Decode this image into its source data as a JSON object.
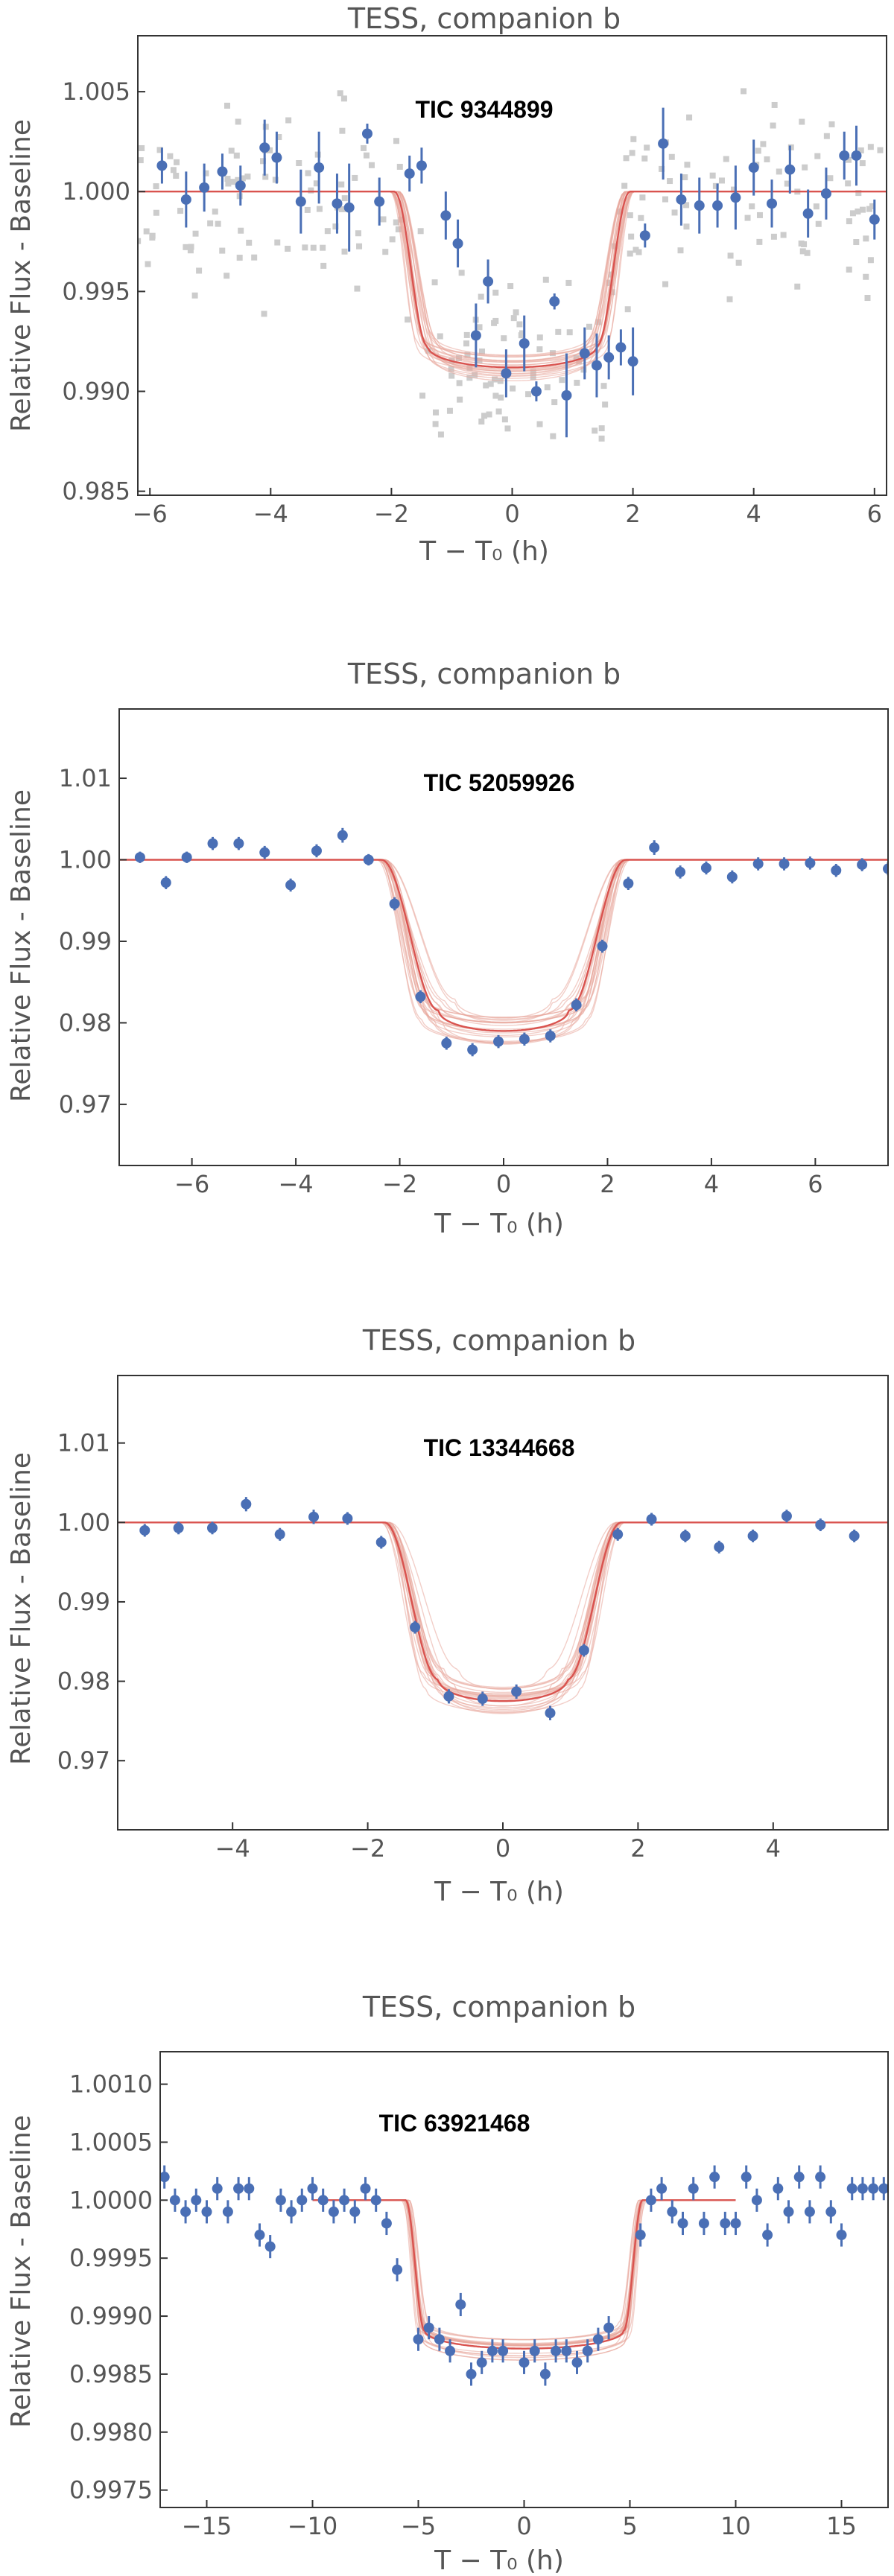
{
  "colors": {
    "data_points": "#4a6fb5",
    "model_line": "#d9534f",
    "model_samples": "#e8a69a",
    "raw_points": "#cccccc",
    "text": "#555555",
    "frame": "#333333"
  },
  "chart_data": [
    {
      "type": "scatter",
      "title": "TESS, companion b",
      "annotation": "TIC 9344899",
      "xlabel": "T − T₀ (h)",
      "ylabel": "Relative Flux - Baseline",
      "xlim": [
        -6.2,
        6.2
      ],
      "ylim": [
        0.9848,
        1.0078
      ],
      "xticks": [
        -6,
        -4,
        -2,
        0,
        2,
        4,
        6
      ],
      "yticks": [
        0.985,
        0.99,
        0.995,
        1.0,
        1.005
      ],
      "ytick_labels": [
        "0.985",
        "0.990",
        "0.995",
        "1.000",
        "1.005"
      ],
      "grid": false,
      "model": {
        "depth": 0.0088,
        "t14": 3.9,
        "tin": 0.55
      },
      "raw_scatter": true,
      "points": [
        {
          "x": -5.8,
          "y": 1.0013,
          "e": 0.0009
        },
        {
          "x": -5.4,
          "y": 0.9996,
          "e": 0.0014
        },
        {
          "x": -5.1,
          "y": 1.0002,
          "e": 0.0012
        },
        {
          "x": -4.8,
          "y": 1.001,
          "e": 0.0009
        },
        {
          "x": -4.5,
          "y": 1.0003,
          "e": 0.001
        },
        {
          "x": -4.1,
          "y": 1.0022,
          "e": 0.0014
        },
        {
          "x": -3.9,
          "y": 1.0017,
          "e": 0.0013
        },
        {
          "x": -3.5,
          "y": 0.9995,
          "e": 0.0016
        },
        {
          "x": -3.2,
          "y": 1.0012,
          "e": 0.0018
        },
        {
          "x": -2.9,
          "y": 0.9994,
          "e": 0.0015
        },
        {
          "x": -2.7,
          "y": 0.9992,
          "e": 0.0022
        },
        {
          "x": -2.4,
          "y": 1.0029,
          "e": 0.0005
        },
        {
          "x": -2.2,
          "y": 0.9995,
          "e": 0.0012
        },
        {
          "x": -1.7,
          "y": 1.0009,
          "e": 0.0009
        },
        {
          "x": -1.5,
          "y": 1.0013,
          "e": 0.0009
        },
        {
          "x": -1.1,
          "y": 0.9988,
          "e": 0.0012
        },
        {
          "x": -0.9,
          "y": 0.9974,
          "e": 0.0012
        },
        {
          "x": -0.6,
          "y": 0.9928,
          "e": 0.0016
        },
        {
          "x": -0.4,
          "y": 0.9955,
          "e": 0.0011
        },
        {
          "x": -0.1,
          "y": 0.9909,
          "e": 0.0012
        },
        {
          "x": 0.2,
          "y": 0.9924,
          "e": 0.0014
        },
        {
          "x": 0.4,
          "y": 0.99,
          "e": 0.0005
        },
        {
          "x": 0.7,
          "y": 0.9945,
          "e": 0.0004
        },
        {
          "x": 0.9,
          "y": 0.9898,
          "e": 0.0021
        },
        {
          "x": 1.2,
          "y": 0.9919,
          "e": 0.0013
        },
        {
          "x": 1.4,
          "y": 0.9913,
          "e": 0.0016
        },
        {
          "x": 1.6,
          "y": 0.9917,
          "e": 0.0011
        },
        {
          "x": 1.8,
          "y": 0.9922,
          "e": 0.0009
        },
        {
          "x": 2.0,
          "y": 0.9915,
          "e": 0.0017
        },
        {
          "x": 2.2,
          "y": 0.9978,
          "e": 0.0006
        },
        {
          "x": 2.5,
          "y": 1.0024,
          "e": 0.0018
        },
        {
          "x": 2.8,
          "y": 0.9996,
          "e": 0.0013
        },
        {
          "x": 3.1,
          "y": 0.9993,
          "e": 0.0014
        },
        {
          "x": 3.4,
          "y": 0.9993,
          "e": 0.0011
        },
        {
          "x": 3.7,
          "y": 0.9997,
          "e": 0.0016
        },
        {
          "x": 4.0,
          "y": 1.0012,
          "e": 0.0014
        },
        {
          "x": 4.3,
          "y": 0.9994,
          "e": 0.0012
        },
        {
          "x": 4.6,
          "y": 1.0011,
          "e": 0.0012
        },
        {
          "x": 4.9,
          "y": 0.9989,
          "e": 0.0012
        },
        {
          "x": 5.2,
          "y": 0.9999,
          "e": 0.0013
        },
        {
          "x": 5.5,
          "y": 1.0018,
          "e": 0.0012
        },
        {
          "x": 5.7,
          "y": 1.0018,
          "e": 0.0015
        },
        {
          "x": 6.0,
          "y": 0.9986,
          "e": 0.001
        }
      ]
    },
    {
      "type": "scatter",
      "title": "TESS, companion b",
      "annotation": "TIC 52059926",
      "xlabel": "T − T₀ (h)",
      "ylabel": "Relative Flux - Baseline",
      "xlim": [
        -7.4,
        7.4
      ],
      "ylim": [
        0.9625,
        1.0185
      ],
      "xticks": [
        -6,
        -4,
        -2,
        0,
        2,
        4,
        6
      ],
      "yticks": [
        0.97,
        0.98,
        0.99,
        1.0,
        1.01
      ],
      "ytick_labels": [
        "0.97",
        "0.98",
        "0.99",
        "1.00",
        "1.01"
      ],
      "grid": false,
      "model": {
        "depth": 0.021,
        "t14": 4.7,
        "tin": 1.1
      },
      "raw_scatter": false,
      "points": [
        {
          "x": -7.0,
          "y": 1.0003,
          "e": 0.0007
        },
        {
          "x": -6.5,
          "y": 0.9972,
          "e": 0.0008
        },
        {
          "x": -6.1,
          "y": 1.0003,
          "e": 0.0007
        },
        {
          "x": -5.6,
          "y": 1.002,
          "e": 0.0008
        },
        {
          "x": -5.1,
          "y": 1.002,
          "e": 0.0008
        },
        {
          "x": -4.6,
          "y": 1.0009,
          "e": 0.0008
        },
        {
          "x": -4.1,
          "y": 0.9969,
          "e": 0.0008
        },
        {
          "x": -3.6,
          "y": 1.0011,
          "e": 0.0008
        },
        {
          "x": -3.1,
          "y": 1.003,
          "e": 0.0009
        },
        {
          "x": -2.6,
          "y": 1.0,
          "e": 0.0007
        },
        {
          "x": -2.1,
          "y": 0.9946,
          "e": 0.0008
        },
        {
          "x": -1.6,
          "y": 0.9832,
          "e": 0.0008
        },
        {
          "x": -1.1,
          "y": 0.9775,
          "e": 0.0008
        },
        {
          "x": -0.6,
          "y": 0.9767,
          "e": 0.0008
        },
        {
          "x": -0.1,
          "y": 0.9777,
          "e": 0.0008
        },
        {
          "x": 0.4,
          "y": 0.978,
          "e": 0.0008
        },
        {
          "x": 0.9,
          "y": 0.9784,
          "e": 0.0008
        },
        {
          "x": 1.4,
          "y": 0.9822,
          "e": 0.0008
        },
        {
          "x": 1.9,
          "y": 0.9894,
          "e": 0.0008
        },
        {
          "x": 2.4,
          "y": 0.9971,
          "e": 0.0008
        },
        {
          "x": 2.9,
          "y": 1.0015,
          "e": 0.0009
        },
        {
          "x": 3.4,
          "y": 0.9985,
          "e": 0.0008
        },
        {
          "x": 3.9,
          "y": 0.999,
          "e": 0.0008
        },
        {
          "x": 4.4,
          "y": 0.9979,
          "e": 0.0008
        },
        {
          "x": 4.9,
          "y": 0.9995,
          "e": 0.0008
        },
        {
          "x": 5.4,
          "y": 0.9995,
          "e": 0.0008
        },
        {
          "x": 5.9,
          "y": 0.9996,
          "e": 0.0008
        },
        {
          "x": 6.4,
          "y": 0.9987,
          "e": 0.0008
        },
        {
          "x": 6.9,
          "y": 0.9994,
          "e": 0.0008
        },
        {
          "x": 7.4,
          "y": 0.9989,
          "e": 0.0008
        }
      ]
    },
    {
      "type": "scatter",
      "title": "TESS, companion b",
      "annotation": "TIC 13344668",
      "xlabel": "T − T₀ (h)",
      "ylabel": "Relative Flux - Baseline",
      "xlim": [
        -5.7,
        5.7
      ],
      "ylim": [
        0.9613,
        1.0185
      ],
      "xticks": [
        -4,
        -2,
        0,
        2,
        4
      ],
      "yticks": [
        0.97,
        0.98,
        0.99,
        1.0,
        1.01
      ],
      "ytick_labels": [
        "0.97",
        "0.98",
        "0.99",
        "1.00",
        "1.01"
      ],
      "grid": false,
      "model": {
        "depth": 0.0225,
        "t14": 3.5,
        "tin": 0.8
      },
      "raw_scatter": false,
      "points": [
        {
          "x": -5.3,
          "y": 0.999,
          "e": 0.0008
        },
        {
          "x": -4.8,
          "y": 0.9993,
          "e": 0.0008
        },
        {
          "x": -4.3,
          "y": 0.9993,
          "e": 0.0008
        },
        {
          "x": -3.8,
          "y": 1.0023,
          "e": 0.0009
        },
        {
          "x": -3.3,
          "y": 0.9985,
          "e": 0.0008
        },
        {
          "x": -2.8,
          "y": 1.0007,
          "e": 0.0009
        },
        {
          "x": -2.3,
          "y": 1.0005,
          "e": 0.0008
        },
        {
          "x": -1.8,
          "y": 0.9975,
          "e": 0.0008
        },
        {
          "x": -1.3,
          "y": 0.9868,
          "e": 0.0008
        },
        {
          "x": -0.8,
          "y": 0.9781,
          "e": 0.0009
        },
        {
          "x": -0.3,
          "y": 0.9778,
          "e": 0.0009
        },
        {
          "x": 0.2,
          "y": 0.9787,
          "e": 0.0009
        },
        {
          "x": 0.7,
          "y": 0.976,
          "e": 0.0009
        },
        {
          "x": 1.2,
          "y": 0.9839,
          "e": 0.0008
        },
        {
          "x": 1.7,
          "y": 0.9985,
          "e": 0.0008
        },
        {
          "x": 2.2,
          "y": 1.0004,
          "e": 0.0008
        },
        {
          "x": 2.7,
          "y": 0.9983,
          "e": 0.0008
        },
        {
          "x": 3.2,
          "y": 0.9969,
          "e": 0.0008
        },
        {
          "x": 3.7,
          "y": 0.9983,
          "e": 0.0008
        },
        {
          "x": 4.2,
          "y": 1.0008,
          "e": 0.0008
        },
        {
          "x": 4.7,
          "y": 0.9997,
          "e": 0.0008
        },
        {
          "x": 5.2,
          "y": 0.9983,
          "e": 0.0008
        }
      ]
    },
    {
      "type": "scatter",
      "title": "TESS, companion b",
      "annotation": "TIC 63921468",
      "xlabel": "T − T₀ (h)",
      "ylabel": "Relative Flux - Baseline",
      "xlim": [
        -17.2,
        17.2
      ],
      "ylim": [
        0.99735,
        1.00128
      ],
      "xticks": [
        -15,
        -10,
        -5,
        0,
        5,
        10,
        15
      ],
      "yticks": [
        0.9975,
        0.998,
        0.9985,
        0.999,
        0.9995,
        1.0,
        1.0005,
        1.001
      ],
      "ytick_labels": [
        "0.9975",
        "0.9980",
        "0.9985",
        "0.9990",
        "0.9995",
        "1.0000",
        "1.0005",
        "1.0010"
      ],
      "grid": false,
      "model": {
        "depth": 0.00128,
        "t14": 11.2,
        "tin": 0.9
      },
      "model_span": [
        -10,
        10
      ],
      "raw_scatter": false,
      "points": [
        {
          "x": -17.0,
          "y": 1.0002,
          "e": 0.0001
        },
        {
          "x": -16.5,
          "y": 1.0,
          "e": 0.0001
        },
        {
          "x": -16.0,
          "y": 0.9999,
          "e": 0.0001
        },
        {
          "x": -15.5,
          "y": 1.0,
          "e": 0.0001
        },
        {
          "x": -15.0,
          "y": 0.9999,
          "e": 0.0001
        },
        {
          "x": -14.5,
          "y": 1.0001,
          "e": 0.0001
        },
        {
          "x": -14.0,
          "y": 0.9999,
          "e": 0.0001
        },
        {
          "x": -13.5,
          "y": 1.0001,
          "e": 0.0001
        },
        {
          "x": -13.0,
          "y": 1.0001,
          "e": 0.0001
        },
        {
          "x": -12.5,
          "y": 0.9997,
          "e": 0.0001
        },
        {
          "x": -12.0,
          "y": 0.9996,
          "e": 0.0001
        },
        {
          "x": -11.5,
          "y": 1.0,
          "e": 0.0001
        },
        {
          "x": -11.0,
          "y": 0.9999,
          "e": 0.0001
        },
        {
          "x": -10.5,
          "y": 1.0,
          "e": 0.0001
        },
        {
          "x": -10.0,
          "y": 1.0001,
          "e": 0.0001
        },
        {
          "x": -9.5,
          "y": 1.0,
          "e": 0.0001
        },
        {
          "x": -9.0,
          "y": 0.9999,
          "e": 0.0001
        },
        {
          "x": -8.5,
          "y": 1.0,
          "e": 0.0001
        },
        {
          "x": -8.0,
          "y": 0.9999,
          "e": 0.0001
        },
        {
          "x": -7.5,
          "y": 1.0001,
          "e": 0.0001
        },
        {
          "x": -7.0,
          "y": 1.0,
          "e": 0.0001
        },
        {
          "x": -6.5,
          "y": 0.9998,
          "e": 0.0001
        },
        {
          "x": -6.0,
          "y": 0.9994,
          "e": 0.0001
        },
        {
          "x": -5.0,
          "y": 0.9988,
          "e": 0.0001
        },
        {
          "x": -4.5,
          "y": 0.9989,
          "e": 0.0001
        },
        {
          "x": -4.0,
          "y": 0.9988,
          "e": 0.0001
        },
        {
          "x": -3.5,
          "y": 0.9987,
          "e": 0.0001
        },
        {
          "x": -3.0,
          "y": 0.9991,
          "e": 0.0001
        },
        {
          "x": -2.5,
          "y": 0.9985,
          "e": 0.0001
        },
        {
          "x": -2.0,
          "y": 0.9986,
          "e": 0.0001
        },
        {
          "x": -1.5,
          "y": 0.9987,
          "e": 0.0001
        },
        {
          "x": -1.0,
          "y": 0.9987,
          "e": 0.0001
        },
        {
          "x": 0.0,
          "y": 0.9986,
          "e": 0.0001
        },
        {
          "x": 0.5,
          "y": 0.9987,
          "e": 0.0001
        },
        {
          "x": 1.0,
          "y": 0.9985,
          "e": 0.0001
        },
        {
          "x": 1.5,
          "y": 0.9987,
          "e": 0.0001
        },
        {
          "x": 2.0,
          "y": 0.9987,
          "e": 0.0001
        },
        {
          "x": 2.5,
          "y": 0.9986,
          "e": 0.0001
        },
        {
          "x": 3.0,
          "y": 0.9987,
          "e": 0.0001
        },
        {
          "x": 3.5,
          "y": 0.9988,
          "e": 0.0001
        },
        {
          "x": 4.0,
          "y": 0.9989,
          "e": 0.0001
        },
        {
          "x": 5.5,
          "y": 0.9997,
          "e": 0.0001
        },
        {
          "x": 6.0,
          "y": 1.0,
          "e": 0.0001
        },
        {
          "x": 6.5,
          "y": 1.0001,
          "e": 0.0001
        },
        {
          "x": 7.0,
          "y": 0.9999,
          "e": 0.0001
        },
        {
          "x": 7.5,
          "y": 0.9998,
          "e": 0.0001
        },
        {
          "x": 8.0,
          "y": 1.0001,
          "e": 0.0001
        },
        {
          "x": 8.5,
          "y": 0.9998,
          "e": 0.0001
        },
        {
          "x": 9.0,
          "y": 1.0002,
          "e": 0.0001
        },
        {
          "x": 9.5,
          "y": 0.9998,
          "e": 0.0001
        },
        {
          "x": 10.0,
          "y": 0.9998,
          "e": 0.0001
        },
        {
          "x": 10.5,
          "y": 1.0002,
          "e": 0.0001
        },
        {
          "x": 11.0,
          "y": 1.0,
          "e": 0.0001
        },
        {
          "x": 11.5,
          "y": 0.9997,
          "e": 0.0001
        },
        {
          "x": 12.0,
          "y": 1.0001,
          "e": 0.0001
        },
        {
          "x": 12.5,
          "y": 0.9999,
          "e": 0.0001
        },
        {
          "x": 13.0,
          "y": 1.0002,
          "e": 0.0001
        },
        {
          "x": 13.5,
          "y": 0.9999,
          "e": 0.0001
        },
        {
          "x": 14.0,
          "y": 1.0002,
          "e": 0.0001
        },
        {
          "x": 14.5,
          "y": 0.9999,
          "e": 0.0001
        },
        {
          "x": 15.0,
          "y": 0.9997,
          "e": 0.0001
        },
        {
          "x": 15.5,
          "y": 1.0001,
          "e": 0.0001
        },
        {
          "x": 16.0,
          "y": 1.0001,
          "e": 0.0001
        },
        {
          "x": 16.5,
          "y": 1.0001,
          "e": 0.0001
        },
        {
          "x": 17.0,
          "y": 1.0001,
          "e": 0.0001
        }
      ]
    }
  ]
}
